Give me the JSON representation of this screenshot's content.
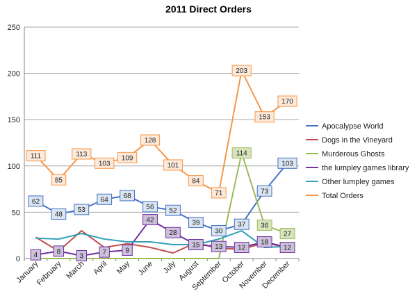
{
  "chart_data": {
    "type": "line",
    "title": "2011 Direct Orders",
    "xlabel": "",
    "ylabel": "",
    "ylim": [
      0,
      250
    ],
    "yticks": [
      0,
      50,
      100,
      150,
      200,
      250
    ],
    "grid": "horizontal",
    "legend_position": "right",
    "categories": [
      "January",
      "February",
      "March",
      "April",
      "May",
      "June",
      "July",
      "August",
      "September",
      "October",
      "November",
      "December"
    ],
    "series": [
      {
        "name": "Apocalypse World",
        "color": "#4472c4",
        "label_fill": "#dbe5f1",
        "labeled": true,
        "values": [
          62,
          48,
          53,
          64,
          68,
          56,
          52,
          39,
          30,
          37,
          73,
          103
        ]
      },
      {
        "name": "Dogs in the Vineyard",
        "color": "#c0504d",
        "labeled": false,
        "values": [
          23,
          8,
          30,
          12,
          16,
          12,
          6,
          17,
          11,
          10,
          17,
          12
        ]
      },
      {
        "name": "Murderous Ghosts",
        "color": "#9bbb59",
        "label_fill": "#d7e4bd",
        "labeled": true,
        "label_start": 9,
        "values": [
          0,
          0,
          0,
          0,
          0,
          0,
          0,
          0,
          0,
          114,
          36,
          27
        ]
      },
      {
        "name": "the lumpley games library",
        "color": "#7030a0",
        "label_fill": "#ccc0da",
        "labeled": true,
        "values": [
          4,
          8,
          3,
          7,
          9,
          42,
          28,
          15,
          13,
          12,
          18,
          12
        ]
      },
      {
        "name": "Other lumpley games",
        "color": "#31a0b8",
        "labeled": false,
        "values": [
          22,
          21,
          27,
          21,
          18,
          18,
          15,
          15,
          21,
          30,
          12,
          13
        ]
      },
      {
        "name": "Total Orders",
        "color": "#f79646",
        "label_fill": "#fde9d9",
        "labeled": true,
        "values": [
          111,
          85,
          113,
          103,
          109,
          128,
          101,
          84,
          71,
          203,
          153,
          170
        ]
      }
    ]
  }
}
